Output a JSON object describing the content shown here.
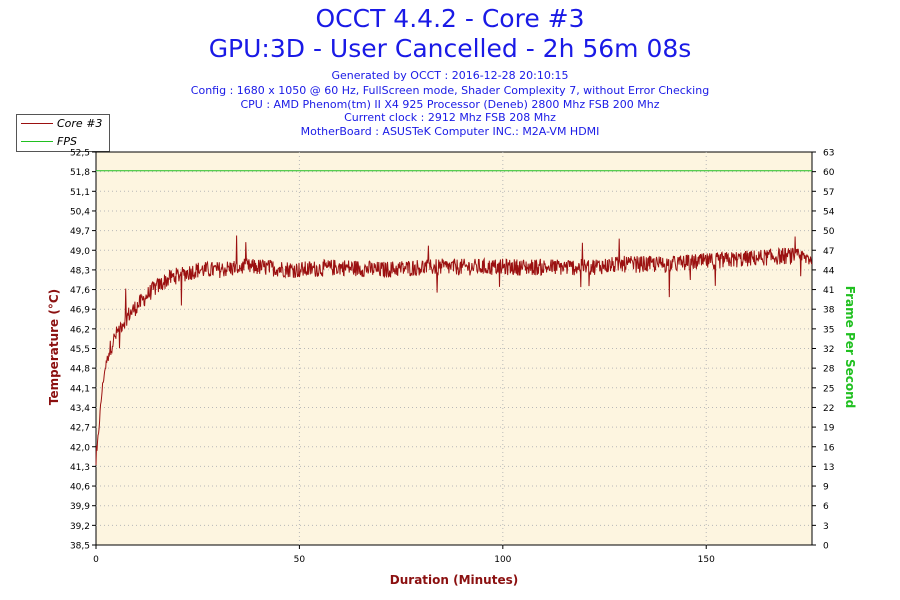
{
  "title": "OCCT 4.4.2 - Core #3",
  "subtitle": "GPU:3D - User Cancelled - 2h 56m 08s",
  "info_lines": [
    "Generated by OCCT : 2016-12-28 20:10:15",
    "Config : 1680 x 1050 @ 60 Hz, FullScreen mode, Shader Complexity 7, without Error Checking",
    "CPU : AMD Phenom(tm) II X4 925 Processor (Deneb) 2800 Mhz FSB 200 Mhz",
    "Current clock : 2912 Mhz FSB 208 Mhz",
    "MotherBoard : ASUSTeK Computer INC.: M2A-VM HDMI"
  ],
  "legend": [
    {
      "label": "Core #3",
      "color": "#9b1010"
    },
    {
      "label": "FPS",
      "color": "#20c020"
    }
  ],
  "chart_data": {
    "type": "line",
    "xlabel": "Duration (Minutes)",
    "ylabel_left": "Temperature (°C)",
    "ylabel_right": "Frame Per Second",
    "xlim": [
      0,
      176
    ],
    "ylim_left": [
      38.5,
      52.5
    ],
    "ylim_right": [
      0,
      63
    ],
    "x_ticks": [
      0,
      50,
      100,
      150
    ],
    "y_ticks_left": [
      "52,5",
      "51,8",
      "51,1",
      "50,4",
      "49,7",
      "49,0",
      "48,3",
      "47,6",
      "46,9",
      "46,2",
      "45,5",
      "44,8",
      "44,1",
      "43,4",
      "42,7",
      "42,0",
      "41,3",
      "40,6",
      "39,9",
      "39,2",
      "38,5"
    ],
    "y_ticks_right": [
      "63",
      "60",
      "57",
      "54",
      "50",
      "47",
      "44",
      "41",
      "38",
      "35",
      "32",
      "28",
      "25",
      "22",
      "19",
      "16",
      "13",
      "9",
      "6",
      "3",
      "0"
    ],
    "grid": true,
    "legend_position": "top-left",
    "series": [
      {
        "name": "Core #3",
        "axis": "left",
        "color": "#9b1010",
        "x": [
          0,
          0.5,
          1,
          1.5,
          2,
          3,
          4,
          5,
          6,
          8,
          10,
          12,
          14,
          16,
          18,
          20,
          25,
          30,
          35,
          40,
          50,
          60,
          70,
          80,
          90,
          100,
          110,
          120,
          130,
          140,
          150,
          160,
          170,
          176
        ],
        "y": [
          41.3,
          42.3,
          43.2,
          44.0,
          44.6,
          45.3,
          45.7,
          46.0,
          46.3,
          46.7,
          47.0,
          47.3,
          47.6,
          47.8,
          48.0,
          48.1,
          48.3,
          48.3,
          48.4,
          48.4,
          48.3,
          48.4,
          48.3,
          48.4,
          48.4,
          48.4,
          48.4,
          48.4,
          48.5,
          48.5,
          48.6,
          48.7,
          48.8,
          48.7
        ],
        "noise": 0.3
      },
      {
        "name": "FPS",
        "axis": "right",
        "color": "#20c020",
        "x": [
          0,
          176
        ],
        "y": [
          60,
          60
        ]
      }
    ]
  }
}
